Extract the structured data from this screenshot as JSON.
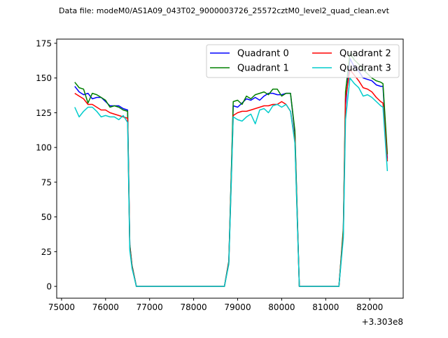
{
  "chart_data": {
    "type": "line",
    "title": "Data file: modeM0/AS1A09_043T02_9000003726_25572cztM0_level2_quad_clean.evt",
    "xlabel": "",
    "ylabel": "",
    "x_offset_label": "+3.303e8",
    "xlim": [
      74890,
      82760
    ],
    "ylim": [
      -8.5,
      178
    ],
    "xticks": [
      75000,
      76000,
      77000,
      78000,
      79000,
      80000,
      81000,
      82000
    ],
    "xtick_labels": [
      "75000",
      "76000",
      "77000",
      "78000",
      "79000",
      "80000",
      "81000",
      "82000"
    ],
    "yticks": [
      0,
      25,
      50,
      75,
      100,
      125,
      150,
      175
    ],
    "ytick_labels": [
      "0",
      "25",
      "50",
      "75",
      "100",
      "125",
      "150",
      "175"
    ],
    "legend_position": "top-right",
    "x": [
      75300,
      75400,
      75500,
      75600,
      75700,
      75800,
      75900,
      76000,
      76100,
      76200,
      76300,
      76400,
      76500,
      76550,
      76600,
      76700,
      78700,
      78800,
      78900,
      79000,
      79100,
      79200,
      79300,
      79400,
      79500,
      79600,
      79700,
      79800,
      79900,
      80000,
      80100,
      80200,
      80300,
      80400,
      81300,
      81400,
      81450,
      81550,
      81650,
      81750,
      81850,
      81950,
      82050,
      82150,
      82250,
      82300,
      82400
    ],
    "series": [
      {
        "name": "Quadrant 0",
        "color": "#0000ff",
        "values": [
          144,
          140,
          138,
          139,
          135,
          136,
          136,
          133,
          130,
          130,
          130,
          128,
          127,
          30,
          15,
          0,
          0,
          18,
          130,
          129,
          132,
          135,
          134,
          136,
          134,
          137,
          139,
          139,
          138,
          138,
          139,
          139,
          110,
          0,
          0,
          40,
          130,
          164,
          158,
          155,
          150,
          149,
          148,
          145,
          144,
          144,
          92
        ]
      },
      {
        "name": "Quadrant 1",
        "color": "#008000",
        "values": [
          147,
          143,
          142,
          132,
          139,
          138,
          136,
          134,
          129,
          130,
          129,
          127,
          126,
          30,
          15,
          0,
          0,
          18,
          133,
          134,
          131,
          137,
          135,
          138,
          139,
          140,
          138,
          142,
          142,
          137,
          139,
          139,
          112,
          0,
          0,
          42,
          140,
          168,
          163,
          160,
          156,
          153,
          150,
          148,
          147,
          146,
          95
        ]
      },
      {
        "name": "Quadrant 2",
        "color": "#ff0000",
        "values": [
          139,
          137,
          135,
          131,
          131,
          129,
          127,
          127,
          125,
          124,
          123,
          122,
          121,
          28,
          14,
          0,
          0,
          17,
          123,
          125,
          126,
          126,
          127,
          128,
          129,
          130,
          130,
          131,
          131,
          133,
          131,
          126,
          105,
          0,
          0,
          38,
          135,
          156,
          152,
          148,
          143,
          142,
          140,
          136,
          133,
          132,
          90
        ]
      },
      {
        "name": "Quadrant 3",
        "color": "#00cccc",
        "values": [
          129,
          122,
          126,
          129,
          129,
          126,
          122,
          123,
          122,
          122,
          120,
          123,
          118,
          26,
          13,
          0,
          0,
          16,
          122,
          120,
          119,
          122,
          124,
          117,
          127,
          128,
          125,
          130,
          131,
          129,
          131,
          126,
          103,
          0,
          0,
          35,
          120,
          150,
          146,
          143,
          137,
          138,
          136,
          133,
          130,
          129,
          83
        ]
      }
    ]
  }
}
